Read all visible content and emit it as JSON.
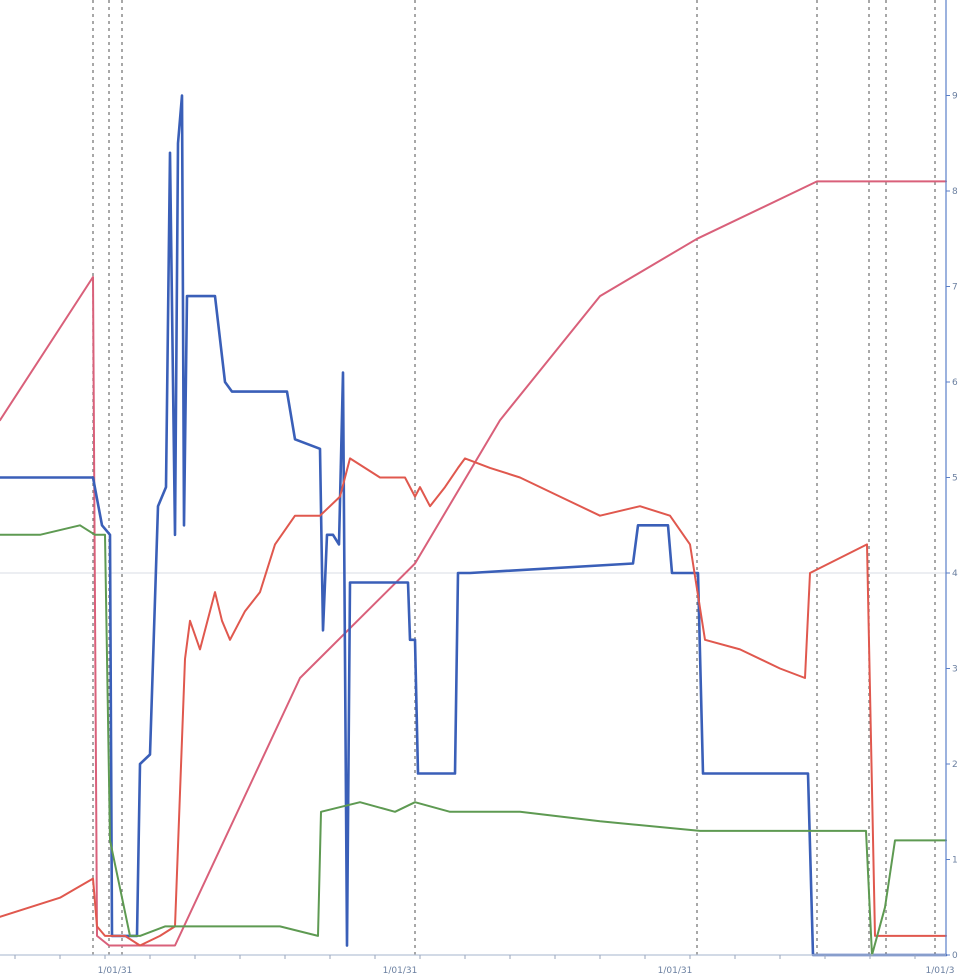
{
  "chart_data": {
    "type": "line",
    "title": "",
    "xlabel": "",
    "ylabel": "",
    "xlim": [
      0,
      966
    ],
    "ylim": [
      0,
      100
    ],
    "grid": "dashed vertical markers",
    "legend": "none",
    "x_tick_labels": [
      {
        "x": 115,
        "label": "1/01/31"
      },
      {
        "x": 400,
        "label": "1/01/31"
      },
      {
        "x": 675,
        "label": "1/01/31"
      },
      {
        "x": 945,
        "label": "1/01/3"
      }
    ],
    "right_tick_labels": [
      {
        "y": 0,
        "label": "0"
      },
      {
        "y": 10,
        "label": "1"
      },
      {
        "y": 20,
        "label": "2"
      },
      {
        "y": 30,
        "label": "3"
      },
      {
        "y": 40,
        "label": "4"
      },
      {
        "y": 50,
        "label": "5"
      },
      {
        "y": 60,
        "label": "6"
      },
      {
        "y": 70,
        "label": "7"
      },
      {
        "y": 80,
        "label": "8"
      },
      {
        "y": 90,
        "label": "9"
      }
    ],
    "vertical_markers": [
      93,
      109,
      122,
      415,
      697,
      817,
      869,
      886,
      935
    ],
    "series": [
      {
        "color": "#d9607a",
        "points": [
          [
            0,
            56
          ],
          [
            93,
            71
          ],
          [
            97,
            2
          ],
          [
            109,
            1
          ],
          [
            125,
            1
          ],
          [
            175,
            1
          ],
          [
            300,
            29
          ],
          [
            415,
            41
          ],
          [
            500,
            56
          ],
          [
            600,
            69
          ],
          [
            697,
            75
          ],
          [
            817,
            81
          ],
          [
            870,
            81
          ],
          [
            946,
            81
          ]
        ]
      },
      {
        "color": "#3a5fb8",
        "points": [
          [
            0,
            50
          ],
          [
            93,
            50
          ],
          [
            102,
            45
          ],
          [
            110,
            44
          ],
          [
            112,
            2
          ],
          [
            137,
            2
          ],
          [
            140,
            20
          ],
          [
            150,
            21
          ],
          [
            158,
            47
          ],
          [
            166,
            49
          ],
          [
            170,
            84
          ],
          [
            175,
            44
          ],
          [
            178,
            85
          ],
          [
            182,
            90
          ],
          [
            184,
            45
          ],
          [
            187,
            69
          ],
          [
            215,
            69
          ],
          [
            225,
            60
          ],
          [
            232,
            59
          ],
          [
            287,
            59
          ],
          [
            295,
            54
          ],
          [
            320,
            53
          ],
          [
            323,
            34
          ],
          [
            327,
            44
          ],
          [
            333,
            44
          ],
          [
            339,
            43
          ],
          [
            343,
            61
          ],
          [
            347,
            1
          ],
          [
            350,
            39
          ],
          [
            372,
            39
          ],
          [
            408,
            39
          ],
          [
            410,
            33
          ],
          [
            415,
            33
          ],
          [
            418,
            19
          ],
          [
            455,
            19
          ],
          [
            458,
            40
          ],
          [
            470,
            40
          ],
          [
            633,
            41
          ],
          [
            638,
            45
          ],
          [
            668,
            45
          ],
          [
            672,
            40
          ],
          [
            698,
            40
          ],
          [
            703,
            19
          ],
          [
            808,
            19
          ],
          [
            813,
            0
          ],
          [
            946,
            0
          ]
        ]
      },
      {
        "color": "#e0584e",
        "points": [
          [
            0,
            4
          ],
          [
            60,
            6
          ],
          [
            93,
            8
          ],
          [
            97,
            3
          ],
          [
            105,
            2
          ],
          [
            125,
            2
          ],
          [
            140,
            1
          ],
          [
            160,
            2
          ],
          [
            175,
            3
          ],
          [
            185,
            31
          ],
          [
            190,
            35
          ],
          [
            200,
            32
          ],
          [
            215,
            38
          ],
          [
            222,
            35
          ],
          [
            230,
            33
          ],
          [
            245,
            36
          ],
          [
            260,
            38
          ],
          [
            275,
            43
          ],
          [
            295,
            46
          ],
          [
            320,
            46
          ],
          [
            340,
            48
          ],
          [
            350,
            52
          ],
          [
            380,
            50
          ],
          [
            405,
            50
          ],
          [
            415,
            48
          ],
          [
            420,
            49
          ],
          [
            430,
            47
          ],
          [
            445,
            49
          ],
          [
            458,
            51
          ],
          [
            465,
            52
          ],
          [
            490,
            51
          ],
          [
            520,
            50
          ],
          [
            560,
            48
          ],
          [
            600,
            46
          ],
          [
            640,
            47
          ],
          [
            670,
            46
          ],
          [
            690,
            43
          ],
          [
            705,
            33
          ],
          [
            740,
            32
          ],
          [
            780,
            30
          ],
          [
            805,
            29
          ],
          [
            810,
            40
          ],
          [
            867,
            43
          ],
          [
            875,
            2
          ],
          [
            946,
            2
          ]
        ]
      },
      {
        "color": "#5e9a52",
        "points": [
          [
            0,
            44
          ],
          [
            40,
            44
          ],
          [
            80,
            45
          ],
          [
            95,
            44
          ],
          [
            105,
            44
          ],
          [
            110,
            12
          ],
          [
            130,
            2
          ],
          [
            140,
            2
          ],
          [
            165,
            3
          ],
          [
            180,
            3
          ],
          [
            220,
            3
          ],
          [
            280,
            3
          ],
          [
            318,
            2
          ],
          [
            321,
            15
          ],
          [
            360,
            16
          ],
          [
            395,
            15
          ],
          [
            415,
            16
          ],
          [
            450,
            15
          ],
          [
            520,
            15
          ],
          [
            600,
            14
          ],
          [
            700,
            13
          ],
          [
            800,
            13
          ],
          [
            866,
            13
          ],
          [
            872,
            0
          ],
          [
            885,
            5
          ],
          [
            895,
            12
          ],
          [
            946,
            12
          ]
        ]
      }
    ]
  }
}
